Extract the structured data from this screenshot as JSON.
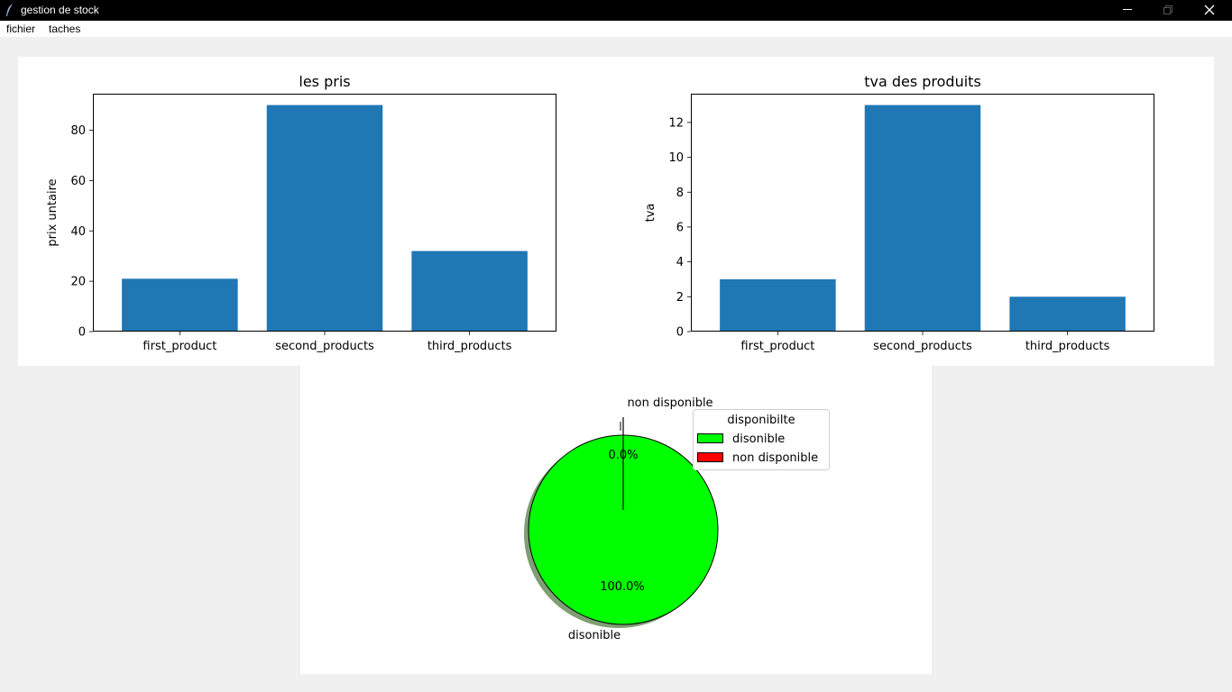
{
  "window": {
    "title": "gestion de stock",
    "controls": [
      "minimize-icon",
      "maximize-icon",
      "close-icon"
    ]
  },
  "menubar": {
    "items": [
      "fichier",
      "taches"
    ]
  },
  "chart_data": [
    {
      "type": "bar",
      "title": "les pris",
      "xlabel": "",
      "ylabel": "prix untaire",
      "categories": [
        "first_product",
        "second_products",
        "third_products"
      ],
      "values": [
        21,
        90,
        32
      ],
      "ylim": [
        0,
        94.5
      ],
      "yticks": [
        "0",
        "20",
        "40",
        "60",
        "80"
      ],
      "color": "#1f77b4",
      "grid": false
    },
    {
      "type": "bar",
      "title": "tva des produits",
      "xlabel": "",
      "ylabel": "tva",
      "categories": [
        "first_product",
        "second_products",
        "third_products"
      ],
      "values": [
        3,
        13,
        2
      ],
      "ylim": [
        0,
        13.65
      ],
      "yticks": [
        "0",
        "2",
        "4",
        "6",
        "8",
        "10",
        "12"
      ],
      "color": "#1f77b4",
      "grid": false
    },
    {
      "type": "pie",
      "labels": [
        "disonible",
        "non disponible"
      ],
      "values": [
        100,
        0
      ],
      "pct_labels": [
        "100.0%",
        "0.0%"
      ],
      "colors": [
        "#00ff00",
        "#ff0000"
      ],
      "shadow": true,
      "legend": {
        "title": "disponibilte",
        "entries": [
          "disonible",
          "non disponible"
        ],
        "placement": "top-right"
      }
    }
  ]
}
